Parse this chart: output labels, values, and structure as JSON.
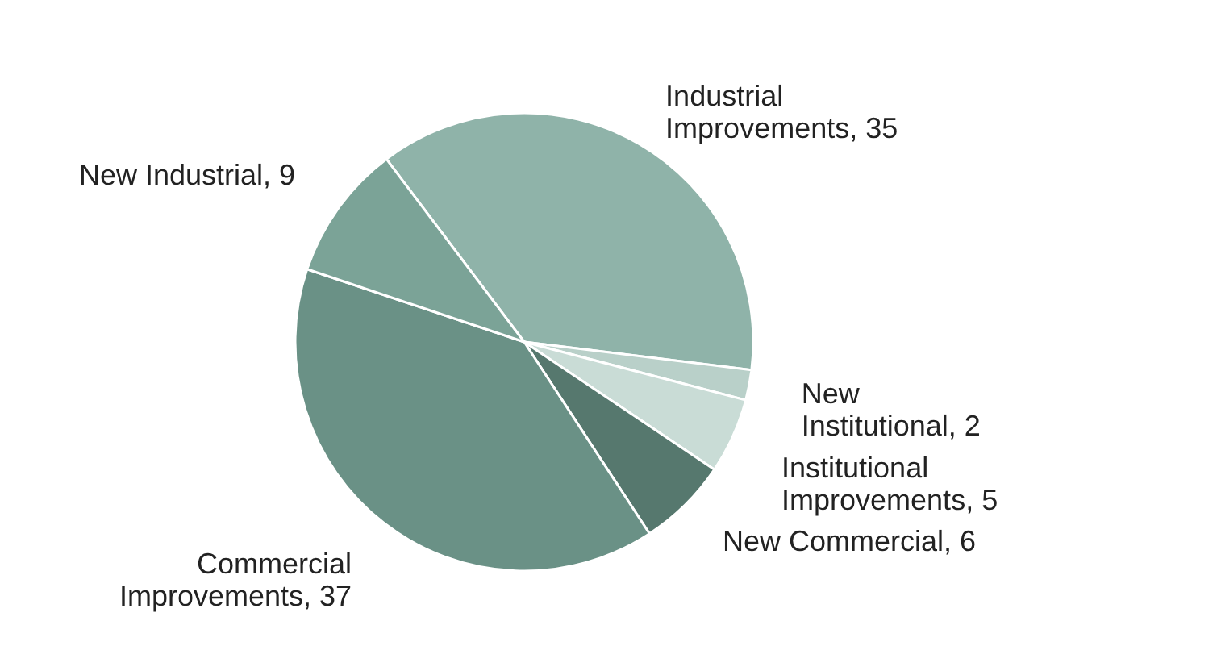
{
  "chart_data": {
    "type": "pie",
    "categories": [
      "Industrial Improvements, 35",
      "New Institutional, 2",
      "Institutional Improvements, 5",
      "New Commercial, 6",
      "Commercial Improvements, 37",
      "New Industrial, 9"
    ],
    "values": [
      35,
      2,
      5,
      6,
      37,
      9
    ],
    "colors": [
      "#8fb3a9",
      "#b9d0c9",
      "#c9dcd6",
      "#56786e",
      "#6a9186",
      "#7ba397"
    ]
  }
}
